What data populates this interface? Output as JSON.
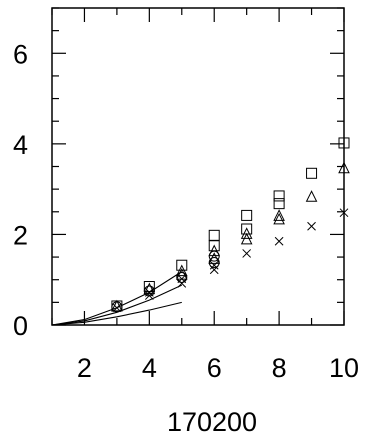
{
  "chart_data": {
    "type": "scatter",
    "xlabel": "170200",
    "ylabel": "",
    "xlim": [
      1,
      10
    ],
    "ylim": [
      0,
      7
    ],
    "x_ticks": [
      2,
      4,
      6,
      8,
      10
    ],
    "y_ticks": [
      0,
      2,
      4,
      6
    ],
    "grid": false,
    "legend": "none",
    "series": [
      {
        "marker": "square",
        "points": [
          [
            3,
            0.42
          ],
          [
            4,
            0.85
          ],
          [
            5,
            1.32
          ],
          [
            6,
            1.75
          ],
          [
            6,
            1.98
          ],
          [
            7,
            2.12
          ],
          [
            7,
            2.42
          ],
          [
            8,
            2.68
          ],
          [
            8,
            2.85
          ],
          [
            9,
            3.35
          ],
          [
            10,
            4.02
          ]
        ]
      },
      {
        "marker": "triangle",
        "points": [
          [
            3,
            0.4
          ],
          [
            4,
            0.78
          ],
          [
            5,
            1.1
          ],
          [
            5,
            1.18
          ],
          [
            6,
            1.45
          ],
          [
            6,
            1.62
          ],
          [
            7,
            1.88
          ],
          [
            7,
            2.0
          ],
          [
            8,
            2.32
          ],
          [
            8,
            2.4
          ],
          [
            9,
            2.82
          ],
          [
            10,
            3.45
          ]
        ]
      },
      {
        "marker": "circle",
        "points": [
          [
            3,
            0.4
          ],
          [
            4,
            0.75
          ],
          [
            5,
            1.05
          ],
          [
            6,
            1.38
          ],
          [
            6,
            1.52
          ]
        ]
      },
      {
        "marker": "x",
        "points": [
          [
            3,
            0.38
          ],
          [
            4,
            0.65
          ],
          [
            4,
            0.72
          ],
          [
            5,
            0.92
          ],
          [
            5,
            1.02
          ],
          [
            6,
            1.22
          ],
          [
            6,
            1.32
          ],
          [
            7,
            1.58
          ],
          [
            8,
            1.85
          ],
          [
            9,
            2.18
          ],
          [
            10,
            2.48
          ]
        ]
      }
    ],
    "curves": [
      {
        "x": [
          1,
          2,
          3,
          4,
          5
        ],
        "y": [
          0.0,
          0.12,
          0.38,
          0.72,
          1.18
        ]
      },
      {
        "x": [
          1,
          2,
          3,
          4,
          5
        ],
        "y": [
          0.0,
          0.09,
          0.28,
          0.55,
          0.88
        ]
      },
      {
        "x": [
          1,
          2,
          3,
          4,
          5
        ],
        "y": [
          0.0,
          0.06,
          0.18,
          0.33,
          0.5
        ]
      }
    ]
  }
}
